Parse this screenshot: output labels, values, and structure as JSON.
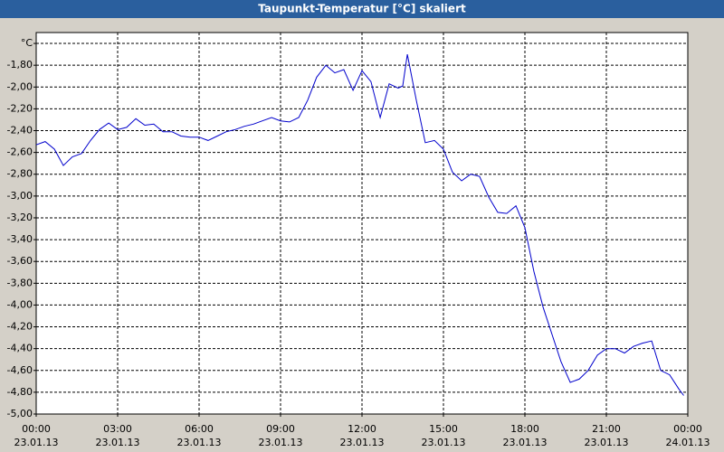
{
  "chart_data": {
    "type": "line",
    "title": "Taupunkt-Temperatur [°C] skaliert",
    "x": [
      0,
      0.33,
      0.67,
      1,
      1.33,
      1.67,
      2,
      2.33,
      2.67,
      3,
      3.33,
      3.67,
      4,
      4.33,
      4.67,
      5,
      5.33,
      5.67,
      6,
      6.33,
      6.67,
      7,
      7.33,
      7.67,
      8,
      8.33,
      8.67,
      9,
      9.33,
      9.67,
      10,
      10.33,
      10.67,
      11,
      11.33,
      11.67,
      12,
      12.33,
      12.67,
      13,
      13.33,
      13.5,
      13.67,
      14,
      14.33,
      14.67,
      15,
      15.33,
      15.67,
      16,
      16.33,
      16.67,
      17,
      17.33,
      17.67,
      18,
      18.33,
      18.67,
      19,
      19.33,
      19.67,
      20,
      20.33,
      20.67,
      21,
      21.33,
      21.67,
      22,
      22.33,
      22.67,
      23,
      23.33,
      23.67,
      23.85
    ],
    "series": [
      {
        "name": "Taupunkt-Temperatur",
        "color": "#0000cc",
        "values": [
          -2.53,
          -2.5,
          -2.57,
          -2.72,
          -2.64,
          -2.61,
          -2.49,
          -2.39,
          -2.33,
          -2.39,
          -2.37,
          -2.29,
          -2.35,
          -2.34,
          -2.41,
          -2.41,
          -2.45,
          -2.46,
          -2.46,
          -2.49,
          -2.45,
          -2.41,
          -2.39,
          -2.36,
          -2.34,
          -2.31,
          -2.28,
          -2.31,
          -2.32,
          -2.28,
          -2.12,
          -1.91,
          -1.8,
          -1.87,
          -1.84,
          -2.03,
          -1.85,
          -1.95,
          -2.28,
          -1.97,
          -2.01,
          -1.99,
          -1.7,
          -2.12,
          -2.51,
          -2.49,
          -2.57,
          -2.78,
          -2.86,
          -2.8,
          -2.82,
          -3.01,
          -3.15,
          -3.16,
          -3.09,
          -3.29,
          -3.69,
          -4.02,
          -4.27,
          -4.52,
          -4.71,
          -4.68,
          -4.6,
          -4.46,
          -4.4,
          -4.4,
          -4.44,
          -4.38,
          -4.35,
          -4.33,
          -4.6,
          -4.64,
          -4.77,
          -4.83
        ]
      }
    ],
    "xlim": [
      0,
      24
    ],
    "xticks": [
      {
        "value": 0,
        "label": "00:00",
        "sublabel": "23.01.13"
      },
      {
        "value": 3,
        "label": "03:00",
        "sublabel": "23.01.13"
      },
      {
        "value": 6,
        "label": "06:00",
        "sublabel": "23.01.13"
      },
      {
        "value": 9,
        "label": "09:00",
        "sublabel": "23.01.13"
      },
      {
        "value": 12,
        "label": "12:00",
        "sublabel": "23.01.13"
      },
      {
        "value": 15,
        "label": "15:00",
        "sublabel": "23.01.13"
      },
      {
        "value": 18,
        "label": "18:00",
        "sublabel": "23.01.13"
      },
      {
        "value": 21,
        "label": "21:00",
        "sublabel": "23.01.13"
      },
      {
        "value": 24,
        "label": "00:00",
        "sublabel": "24.01.13"
      }
    ],
    "ylim": [
      -5,
      -1.5
    ],
    "yticks": [
      {
        "value": -1.6,
        "label": "°C"
      },
      {
        "value": -1.8,
        "label": "-1,80"
      },
      {
        "value": -2.0,
        "label": "-2,00"
      },
      {
        "value": -2.2,
        "label": "-2,20"
      },
      {
        "value": -2.4,
        "label": "-2,40"
      },
      {
        "value": -2.6,
        "label": "-2,60"
      },
      {
        "value": -2.8,
        "label": "-2,80"
      },
      {
        "value": -3.0,
        "label": "-3,00"
      },
      {
        "value": -3.2,
        "label": "-3,20"
      },
      {
        "value": -3.4,
        "label": "-3,40"
      },
      {
        "value": -3.6,
        "label": "-3,60"
      },
      {
        "value": -3.8,
        "label": "-3,80"
      },
      {
        "value": -4.0,
        "label": "-4,00"
      },
      {
        "value": -4.2,
        "label": "-4,20"
      },
      {
        "value": -4.4,
        "label": "-4,40"
      },
      {
        "value": -4.6,
        "label": "-4,60"
      },
      {
        "value": -4.8,
        "label": "-4,80"
      },
      {
        "value": -5.0,
        "label": "-5,00"
      }
    ],
    "grid": true
  }
}
